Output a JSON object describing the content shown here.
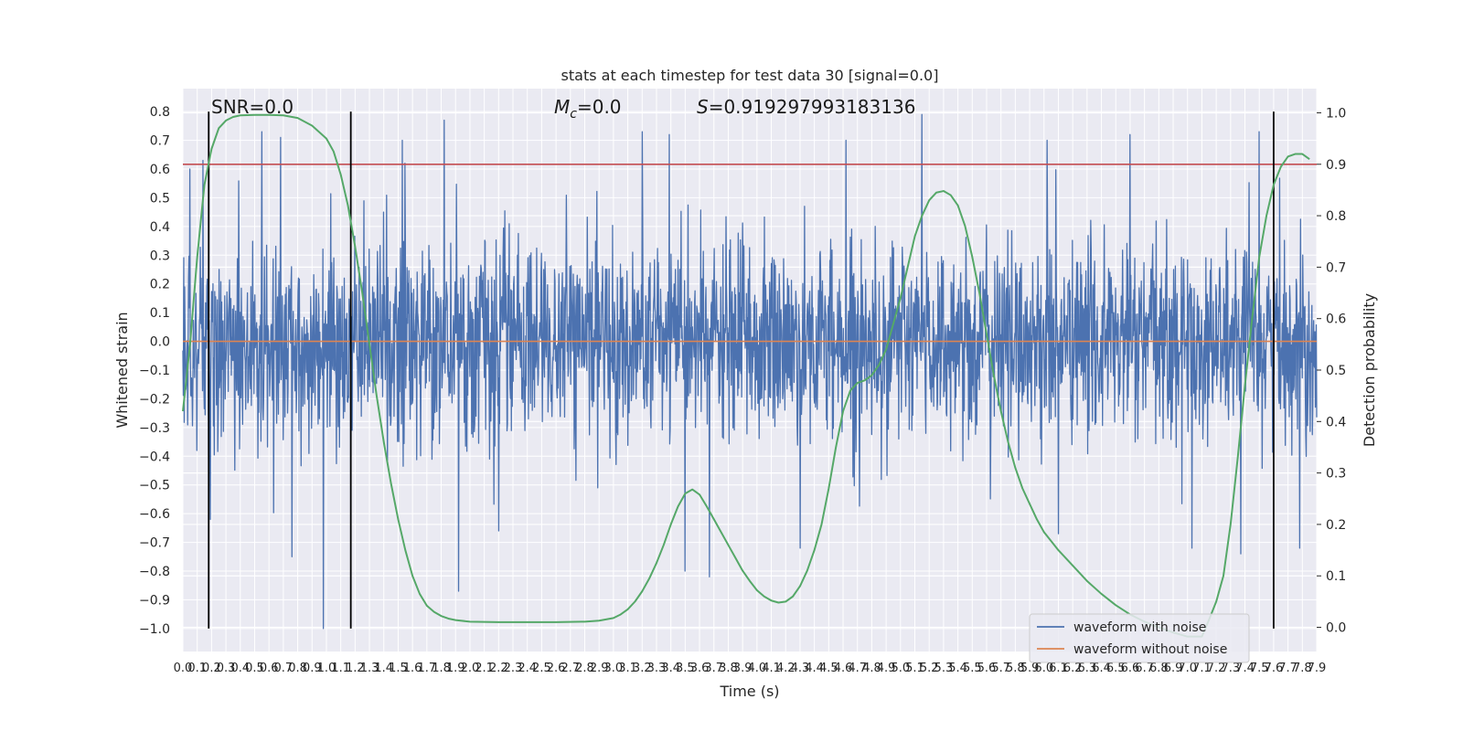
{
  "chart_data": {
    "type": "line",
    "title": "stats at each timestep for test data 30 [signal=0.0]",
    "xlabel": "Time (s)",
    "ylabel_left": "Whitened strain",
    "ylabel_right": "Detection probability",
    "xlim": [
      0.0,
      7.9
    ],
    "ylim_left": [
      -1.08,
      0.88
    ],
    "ylim_right": [
      -0.047,
      1.047
    ],
    "x_ticks": [
      0.0,
      0.1,
      0.2,
      0.3,
      0.4,
      0.5,
      0.6,
      0.7,
      0.8,
      0.9,
      1.0,
      1.1,
      1.2,
      1.3,
      1.4,
      1.5,
      1.6,
      1.7,
      1.8,
      1.9,
      2.0,
      2.1,
      2.2,
      2.3,
      2.4,
      2.5,
      2.6,
      2.7,
      2.8,
      2.9,
      3.0,
      3.1,
      3.2,
      3.3,
      3.4,
      3.5,
      3.6,
      3.7,
      3.8,
      3.9,
      4.0,
      4.1,
      4.2,
      4.3,
      4.4,
      4.5,
      4.6,
      4.7,
      4.8,
      4.9,
      5.0,
      5.1,
      5.2,
      5.3,
      5.4,
      5.5,
      5.6,
      5.7,
      5.8,
      5.9,
      6.0,
      6.1,
      6.2,
      6.3,
      6.4,
      6.5,
      6.6,
      6.7,
      6.8,
      6.9,
      7.0,
      7.1,
      7.2,
      7.3,
      7.4,
      7.5,
      7.6,
      7.7,
      7.8,
      7.9
    ],
    "x_tick_labels": [
      "0.0",
      "0.1",
      "0.2",
      "0.3",
      "0.4",
      "0.5",
      "0.6",
      "0.7",
      "0.8",
      "0.9",
      "1.0",
      "1.1",
      "1.2",
      "1.3",
      "1.4",
      "1.5",
      "1.6",
      "1.7",
      "1.8",
      "1.9",
      "2.0",
      "2.1",
      "2.2",
      "2.3",
      "2.4",
      "2.5",
      "2.6",
      "2.7",
      "2.8",
      "2.9",
      "3.0",
      "3.1",
      "3.2",
      "3.3",
      "3.4",
      "3.5",
      "3.6",
      "3.7",
      "3.8",
      "3.9",
      "4.0",
      "4.1",
      "4.2",
      "4.3",
      "4.4",
      "4.5",
      "4.6",
      "4.7",
      "4.8",
      "4.9",
      "5.0",
      "5.1",
      "5.2",
      "5.3",
      "5.4",
      "5.5",
      "5.6",
      "5.7",
      "5.8",
      "5.9",
      "6.0",
      "6.1",
      "6.2",
      "6.3",
      "6.4",
      "6.5",
      "6.6",
      "6.7",
      "6.8",
      "6.9",
      "7.0",
      "7.1",
      "7.2",
      "7.3",
      "7.4",
      "7.5",
      "7.6",
      "7.7",
      "7.8",
      "7.9"
    ],
    "y_ticks_left": [
      0.8,
      0.7,
      0.6,
      0.5,
      0.4,
      0.3,
      0.2,
      0.1,
      0.0,
      -0.1,
      -0.2,
      -0.3,
      -0.4,
      -0.5,
      -0.6,
      -0.7,
      -0.8,
      -0.9,
      -1.0
    ],
    "y_tick_labels_left": [
      "0.8",
      "0.7",
      "0.6",
      "0.5",
      "0.4",
      "0.3",
      "0.2",
      "0.1",
      "0.0",
      "−0.1",
      "−0.2",
      "−0.3",
      "−0.4",
      "−0.5",
      "−0.6",
      "−0.7",
      "−0.8",
      "−0.9",
      "−1.0"
    ],
    "y_ticks_right": [
      1.0,
      0.9,
      0.8,
      0.7,
      0.6,
      0.5,
      0.4,
      0.3,
      0.2,
      0.1,
      0.0
    ],
    "y_tick_labels_right": [
      "1.0",
      "0.9",
      "0.8",
      "0.7",
      "0.6",
      "0.5",
      "0.4",
      "0.3",
      "0.2",
      "0.1",
      "0.0"
    ],
    "annotations": {
      "snr": "SNR=0.0",
      "mc_symbol": "M",
      "mc_subscript": "c",
      "mc_value": "=0.0",
      "s_symbol": "S",
      "s_value": "=0.919297993183136"
    },
    "threshold_line_right": 0.9,
    "vertical_lines_x": [
      0.18,
      1.17,
      7.6
    ],
    "vertical_lines_ylim_left": [
      -1.0,
      0.8
    ],
    "series": [
      {
        "name": "waveform with noise",
        "color": "#4c72b0",
        "axis": "left",
        "description_values": "whitened noise, roughly within ±0.3 with spikes to about 0.8 and down to −1.0",
        "spikes": [
          {
            "x": 0.05,
            "y": 0.6
          },
          {
            "x": 0.14,
            "y": 0.63
          },
          {
            "x": 0.19,
            "y": -0.62
          },
          {
            "x": 0.55,
            "y": 0.73
          },
          {
            "x": 0.68,
            "y": 0.71
          },
          {
            "x": 0.76,
            "y": -0.75
          },
          {
            "x": 0.98,
            "y": -1.0
          },
          {
            "x": 1.17,
            "y": -0.6
          },
          {
            "x": 1.53,
            "y": 0.7
          },
          {
            "x": 1.82,
            "y": 0.77
          },
          {
            "x": 1.92,
            "y": -0.87
          },
          {
            "x": 2.2,
            "y": -0.66
          },
          {
            "x": 3.2,
            "y": 0.73
          },
          {
            "x": 3.39,
            "y": 0.72
          },
          {
            "x": 3.5,
            "y": -0.8
          },
          {
            "x": 3.67,
            "y": -0.82
          },
          {
            "x": 4.3,
            "y": -0.72
          },
          {
            "x": 4.62,
            "y": 0.7
          },
          {
            "x": 5.15,
            "y": 0.79
          },
          {
            "x": 6.02,
            "y": 0.7
          },
          {
            "x": 6.1,
            "y": -0.67
          },
          {
            "x": 6.6,
            "y": 0.72
          },
          {
            "x": 7.03,
            "y": -0.72
          },
          {
            "x": 7.37,
            "y": -0.74
          },
          {
            "x": 7.5,
            "y": 0.73
          },
          {
            "x": 7.78,
            "y": -0.72
          }
        ]
      },
      {
        "name": "waveform without noise",
        "color": "#dd8452",
        "axis": "left",
        "x": [
          0.0,
          7.9
        ],
        "y": [
          0.0,
          0.0
        ]
      },
      {
        "name": "detection probability",
        "color": "#55a868",
        "axis": "right",
        "x": [
          0.0,
          0.05,
          0.1,
          0.15,
          0.2,
          0.25,
          0.3,
          0.35,
          0.4,
          0.5,
          0.6,
          0.7,
          0.8,
          0.9,
          1.0,
          1.05,
          1.1,
          1.15,
          1.2,
          1.25,
          1.3,
          1.35,
          1.4,
          1.45,
          1.5,
          1.55,
          1.6,
          1.65,
          1.7,
          1.75,
          1.8,
          1.85,
          1.9,
          2.0,
          2.2,
          2.4,
          2.6,
          2.8,
          2.9,
          3.0,
          3.05,
          3.1,
          3.15,
          3.2,
          3.25,
          3.3,
          3.35,
          3.4,
          3.45,
          3.5,
          3.55,
          3.6,
          3.65,
          3.7,
          3.75,
          3.8,
          3.85,
          3.9,
          3.95,
          4.0,
          4.05,
          4.1,
          4.15,
          4.2,
          4.25,
          4.3,
          4.35,
          4.4,
          4.45,
          4.5,
          4.55,
          4.6,
          4.65,
          4.7,
          4.75,
          4.8,
          4.85,
          4.9,
          4.95,
          5.0,
          5.05,
          5.1,
          5.15,
          5.2,
          5.25,
          5.3,
          5.35,
          5.4,
          5.45,
          5.5,
          5.55,
          5.6,
          5.65,
          5.7,
          5.75,
          5.8,
          5.85,
          5.9,
          5.95,
          6.0,
          6.1,
          6.2,
          6.3,
          6.4,
          6.5,
          6.6,
          6.7,
          6.8,
          6.9,
          7.0,
          7.1,
          7.15,
          7.2,
          7.25,
          7.3,
          7.35,
          7.4,
          7.45,
          7.5,
          7.55,
          7.6,
          7.65,
          7.7,
          7.75,
          7.8,
          7.85
        ],
        "y": [
          0.42,
          0.55,
          0.72,
          0.86,
          0.93,
          0.97,
          0.985,
          0.992,
          0.995,
          0.996,
          0.996,
          0.995,
          0.99,
          0.975,
          0.95,
          0.925,
          0.88,
          0.82,
          0.74,
          0.65,
          0.55,
          0.45,
          0.36,
          0.28,
          0.21,
          0.15,
          0.1,
          0.065,
          0.042,
          0.03,
          0.022,
          0.017,
          0.014,
          0.011,
          0.01,
          0.01,
          0.01,
          0.011,
          0.013,
          0.018,
          0.025,
          0.035,
          0.05,
          0.07,
          0.095,
          0.125,
          0.16,
          0.2,
          0.235,
          0.26,
          0.268,
          0.258,
          0.235,
          0.21,
          0.185,
          0.16,
          0.135,
          0.11,
          0.09,
          0.072,
          0.06,
          0.052,
          0.048,
          0.05,
          0.06,
          0.08,
          0.11,
          0.15,
          0.2,
          0.27,
          0.35,
          0.42,
          0.46,
          0.475,
          0.48,
          0.49,
          0.51,
          0.54,
          0.59,
          0.64,
          0.7,
          0.76,
          0.8,
          0.83,
          0.845,
          0.848,
          0.84,
          0.82,
          0.78,
          0.72,
          0.65,
          0.57,
          0.49,
          0.42,
          0.36,
          0.31,
          0.27,
          0.24,
          0.21,
          0.185,
          0.15,
          0.12,
          0.09,
          0.065,
          0.043,
          0.025,
          0.011,
          0.0,
          -0.01,
          -0.018,
          -0.018,
          0.015,
          0.05,
          0.1,
          0.2,
          0.33,
          0.47,
          0.6,
          0.72,
          0.8,
          0.86,
          0.895,
          0.915,
          0.92,
          0.92,
          0.91
        ]
      }
    ],
    "legend": {
      "position": "bottom-right",
      "entries": [
        {
          "label": "waveform with noise",
          "color": "#4c72b0"
        },
        {
          "label": "waveform without noise",
          "color": "#dd8452"
        }
      ]
    }
  },
  "colors": {
    "axes_bg": "#eaeaf2",
    "grid": "#ffffff",
    "threshold": "#c44e52",
    "vline": "#000000"
  }
}
